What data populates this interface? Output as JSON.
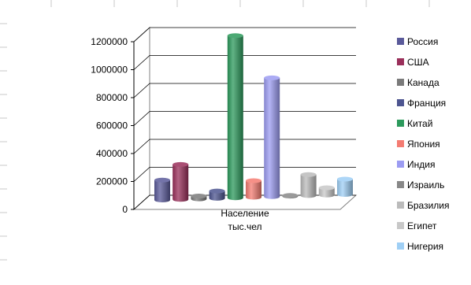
{
  "chart_data": {
    "type": "bar",
    "categories": [
      "Население тыс.чел"
    ],
    "category_lines": [
      "Население",
      "тыс.чел"
    ],
    "series": [
      {
        "name": "Россия",
        "values": [
          142000
        ],
        "color": "#5A5A9A"
      },
      {
        "name": "США",
        "values": [
          250000
        ],
        "color": "#9A2F5A"
      },
      {
        "name": "Канада",
        "values": [
          20000
        ],
        "color": "#7A7A7A"
      },
      {
        "name": "Франция",
        "values": [
          52000
        ],
        "color": "#4D5590"
      },
      {
        "name": "Китай",
        "values": [
          1160000
        ],
        "color": "#2C9A5C"
      },
      {
        "name": "Япония",
        "values": [
          118000
        ],
        "color": "#F47C72"
      },
      {
        "name": "Индия",
        "values": [
          850000
        ],
        "color": "#9C9CF2"
      },
      {
        "name": "Израиль",
        "values": [
          5000
        ],
        "color": "#888888"
      },
      {
        "name": "Бразилия",
        "values": [
          150000
        ],
        "color": "#BBBBBB"
      },
      {
        "name": "Египет",
        "values": [
          52000
        ],
        "color": "#C8C8C8"
      },
      {
        "name": "Нигерия",
        "values": [
          110000
        ],
        "color": "#9FCFF5"
      }
    ],
    "ylim": [
      0,
      1200000
    ],
    "yticks": [
      0,
      200000,
      400000,
      600000,
      800000,
      1000000,
      1200000
    ],
    "grid": true,
    "legend": "right",
    "style": "3d-cylinder"
  }
}
